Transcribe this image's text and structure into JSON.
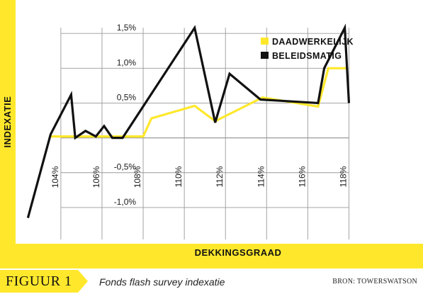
{
  "chart_data": {
    "type": "line",
    "title": "",
    "xlabel": "DEKKINGSGRAAD",
    "ylabel": "INDEXATIE",
    "x_ticks": [
      104,
      106,
      108,
      110,
      112,
      114,
      116,
      118
    ],
    "x_tick_labels": [
      "104%",
      "106%",
      "108%",
      "110%",
      "112%",
      "114%",
      "116%",
      "118%"
    ],
    "y_ticks": [
      -1.0,
      -0.5,
      0.5,
      1.0,
      1.5
    ],
    "y_tick_labels": [
      "-1,0%",
      "-0,5%",
      "0,5%",
      "1,0%",
      "1,5%"
    ],
    "xlim": [
      101.8,
      121.6
    ],
    "ylim": [
      -1.52,
      1.98
    ],
    "grid": true,
    "legend_position": "top-right",
    "series": [
      {
        "name": "DAADWERKELIJK",
        "color": "#ffe82c",
        "x": [
          103.5,
          108.0,
          108.4,
          110.5,
          111.5,
          113.8,
          116.5,
          117.0,
          117.9
        ],
        "y": [
          0.02,
          0.02,
          0.28,
          0.46,
          0.24,
          0.58,
          0.45,
          1.0,
          1.0
        ]
      },
      {
        "name": "BELEIDSMATIG",
        "color": "#111111",
        "x": [
          102.4,
          103.5,
          104.5,
          104.7,
          105.2,
          105.7,
          106.1,
          106.5,
          107.0,
          110.5,
          111.5,
          112.2,
          113.7,
          116.5,
          116.8,
          117.8,
          118.0
        ],
        "y": [
          -1.15,
          0.05,
          0.62,
          0.0,
          0.1,
          0.02,
          0.17,
          0.0,
          0.0,
          1.58,
          0.22,
          0.92,
          0.55,
          0.5,
          1.0,
          1.58,
          0.5
        ]
      }
    ]
  },
  "footer": {
    "figure_label": "FIGUUR 1",
    "caption": "Fonds flash survey indexatie",
    "source": "BRON: TOWERSWATSON"
  },
  "colors": {
    "panel": "#ffffff",
    "frame": "#ffe82c",
    "grid": "#9a9a9a"
  }
}
